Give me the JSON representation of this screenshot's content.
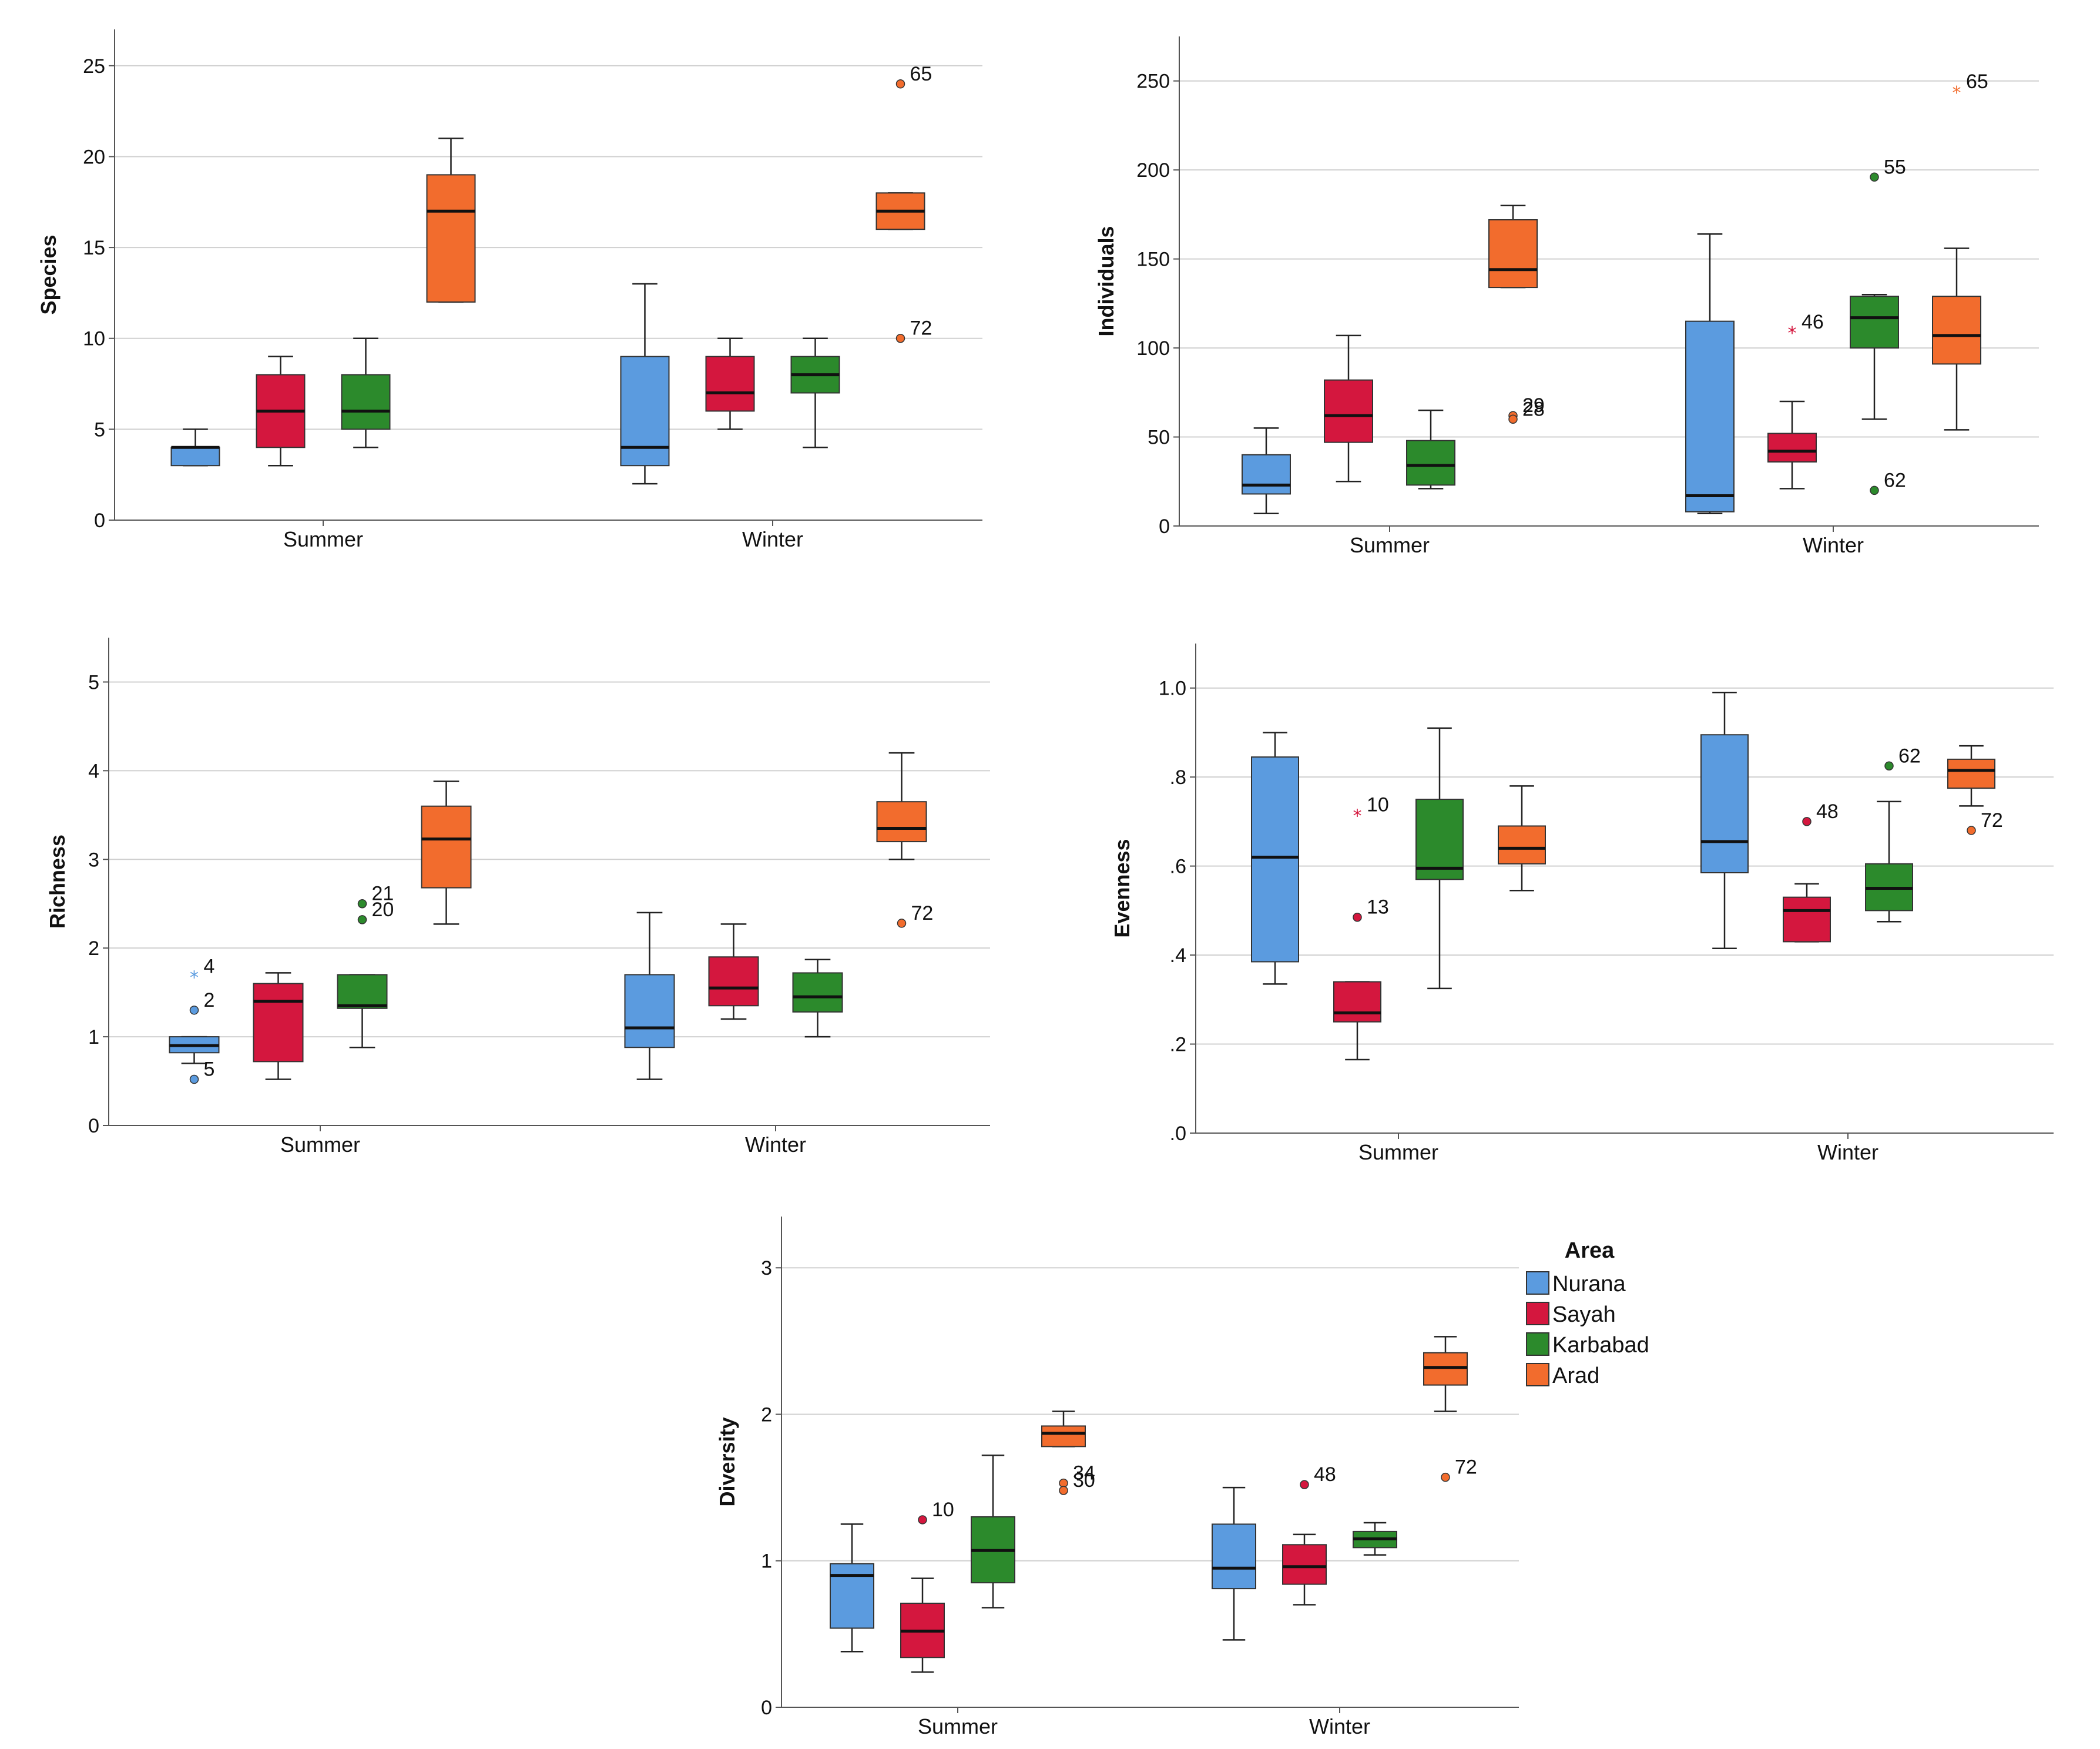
{
  "chart_data": [
    {
      "type": "box",
      "ylabel": "Species",
      "ylim": [
        0,
        27
      ],
      "yticks": [
        0,
        5,
        10,
        15,
        20,
        25
      ],
      "ytick_labels": [
        "0",
        "5",
        "10",
        "15",
        "20",
        "25"
      ],
      "categories": [
        "Summer",
        "Winter"
      ],
      "series": [
        {
          "name": "Nurana",
          "boxes": [
            {
              "min": 3,
              "q1": 3,
              "median": 4,
              "q3": 4,
              "max": 5,
              "outliers": []
            },
            {
              "min": 2,
              "q1": 3,
              "median": 4,
              "q3": 9,
              "max": 13,
              "outliers": []
            }
          ]
        },
        {
          "name": "Sayah",
          "boxes": [
            {
              "min": 3,
              "q1": 4,
              "median": 6,
              "q3": 8,
              "max": 9,
              "outliers": []
            },
            {
              "min": 5,
              "q1": 6,
              "median": 7,
              "q3": 9,
              "max": 10,
              "outliers": []
            }
          ]
        },
        {
          "name": "Karbabad",
          "boxes": [
            {
              "min": 4,
              "q1": 5,
              "median": 6,
              "q3": 8,
              "max": 10,
              "outliers": []
            },
            {
              "min": 4,
              "q1": 7,
              "median": 8,
              "q3": 9,
              "max": 10,
              "outliers": []
            }
          ]
        },
        {
          "name": "Arad",
          "boxes": [
            {
              "min": 12,
              "q1": 12,
              "median": 17,
              "q3": 19,
              "max": 21,
              "outliers": []
            },
            {
              "min": 16,
              "q1": 16,
              "median": 17,
              "q3": 18,
              "max": 18,
              "outliers": [
                {
                  "value": 24,
                  "label": "65",
                  "marker": "circle"
                },
                {
                  "value": 10,
                  "label": "72",
                  "marker": "circle"
                }
              ]
            }
          ]
        }
      ]
    },
    {
      "type": "box",
      "ylabel": "Individuals",
      "ylim": [
        0,
        275
      ],
      "yticks": [
        0,
        50,
        100,
        150,
        200,
        250
      ],
      "ytick_labels": [
        "0",
        "50",
        "100",
        "150",
        "200",
        "250"
      ],
      "categories": [
        "Summer",
        "Winter"
      ],
      "series": [
        {
          "name": "Nurana",
          "boxes": [
            {
              "min": 7,
              "q1": 18,
              "median": 23,
              "q3": 40,
              "max": 55,
              "outliers": []
            },
            {
              "min": 7,
              "q1": 8,
              "median": 17,
              "q3": 115,
              "max": 164,
              "outliers": []
            }
          ]
        },
        {
          "name": "Sayah",
          "boxes": [
            {
              "min": 25,
              "q1": 47,
              "median": 62,
              "q3": 82,
              "max": 107,
              "outliers": []
            },
            {
              "min": 21,
              "q1": 36,
              "median": 42,
              "q3": 52,
              "max": 70,
              "outliers": [
                {
                  "value": 109,
                  "label": "46",
                  "marker": "star"
                }
              ]
            }
          ]
        },
        {
          "name": "Karbabad",
          "boxes": [
            {
              "min": 21,
              "q1": 23,
              "median": 34,
              "q3": 48,
              "max": 65,
              "outliers": []
            },
            {
              "min": 60,
              "q1": 100,
              "median": 117,
              "q3": 129,
              "max": 130,
              "outliers": [
                {
                  "value": 196,
                  "label": "55",
                  "marker": "circle"
                },
                {
                  "value": 20,
                  "label": "62",
                  "marker": "circle"
                }
              ]
            }
          ]
        },
        {
          "name": "Arad",
          "boxes": [
            {
              "min": 134,
              "q1": 134,
              "median": 144,
              "q3": 172,
              "max": 180,
              "outliers": [
                {
                  "value": 62,
                  "label": "29",
                  "marker": "circle"
                },
                {
                  "value": 60,
                  "label": "28",
                  "marker": "circle"
                }
              ]
            },
            {
              "min": 54,
              "q1": 91,
              "median": 107,
              "q3": 129,
              "max": 156,
              "outliers": [
                {
                  "value": 244,
                  "label": "65",
                  "marker": "star"
                }
              ]
            }
          ]
        }
      ]
    },
    {
      "type": "box",
      "ylabel": "Richness",
      "ylim": [
        0,
        5.5
      ],
      "yticks": [
        0,
        1,
        2,
        3,
        4,
        5
      ],
      "ytick_labels": [
        "0",
        "1",
        "2",
        "3",
        "4",
        "5"
      ],
      "categories": [
        "Summer",
        "Winter"
      ],
      "series": [
        {
          "name": "Nurana",
          "boxes": [
            {
              "min": 0.7,
              "q1": 0.82,
              "median": 0.9,
              "q3": 1.0,
              "max": 1.0,
              "outliers": [
                {
                  "value": 1.68,
                  "label": "4",
                  "marker": "star"
                },
                {
                  "value": 1.3,
                  "label": "2",
                  "marker": "circle"
                },
                {
                  "value": 0.52,
                  "label": "5",
                  "marker": "circle"
                }
              ]
            },
            {
              "min": 0.52,
              "q1": 0.88,
              "median": 1.1,
              "q3": 1.7,
              "max": 2.4,
              "outliers": []
            }
          ]
        },
        {
          "name": "Sayah",
          "boxes": [
            {
              "min": 0.52,
              "q1": 0.72,
              "median": 1.4,
              "q3": 1.6,
              "max": 1.72,
              "outliers": []
            },
            {
              "min": 1.2,
              "q1": 1.35,
              "median": 1.55,
              "q3": 1.9,
              "max": 2.27,
              "outliers": []
            }
          ]
        },
        {
          "name": "Karbabad",
          "boxes": [
            {
              "min": 0.88,
              "q1": 1.32,
              "median": 1.35,
              "q3": 1.7,
              "max": 1.7,
              "outliers": [
                {
                  "value": 2.5,
                  "label": "21",
                  "marker": "circle"
                },
                {
                  "value": 2.32,
                  "label": "20",
                  "marker": "circle"
                }
              ]
            },
            {
              "min": 1.0,
              "q1": 1.28,
              "median": 1.45,
              "q3": 1.72,
              "max": 1.87,
              "outliers": []
            }
          ]
        },
        {
          "name": "Arad",
          "boxes": [
            {
              "min": 2.27,
              "q1": 2.68,
              "median": 3.23,
              "q3": 3.6,
              "max": 3.88,
              "outliers": []
            },
            {
              "min": 3.0,
              "q1": 3.2,
              "median": 3.35,
              "q3": 3.65,
              "max": 4.2,
              "outliers": [
                {
                  "value": 2.28,
                  "label": "72",
                  "marker": "circle"
                }
              ]
            }
          ]
        }
      ]
    },
    {
      "type": "box",
      "ylabel": "Evenness",
      "ylim": [
        0,
        1.1
      ],
      "yticks": [
        0,
        0.2,
        0.4,
        0.6,
        0.8,
        1.0
      ],
      "ytick_labels": [
        ".0",
        ".2",
        ".4",
        ".6",
        ".8",
        "1.0"
      ],
      "categories": [
        "Summer",
        "Winter"
      ],
      "series": [
        {
          "name": "Nurana",
          "boxes": [
            {
              "min": 0.335,
              "q1": 0.385,
              "median": 0.62,
              "q3": 0.845,
              "max": 0.9,
              "outliers": []
            },
            {
              "min": 0.415,
              "q1": 0.585,
              "median": 0.655,
              "q3": 0.895,
              "max": 0.99,
              "outliers": []
            }
          ]
        },
        {
          "name": "Sayah",
          "boxes": [
            {
              "min": 0.165,
              "q1": 0.25,
              "median": 0.27,
              "q3": 0.34,
              "max": 0.34,
              "outliers": [
                {
                  "value": 0.715,
                  "label": "10",
                  "marker": "star"
                },
                {
                  "value": 0.485,
                  "label": "13",
                  "marker": "circle"
                }
              ]
            },
            {
              "min": 0.43,
              "q1": 0.43,
              "median": 0.5,
              "q3": 0.53,
              "max": 0.56,
              "outliers": [
                {
                  "value": 0.7,
                  "label": "48",
                  "marker": "circle"
                }
              ]
            }
          ]
        },
        {
          "name": "Karbabad",
          "boxes": [
            {
              "min": 0.325,
              "q1": 0.57,
              "median": 0.595,
              "q3": 0.75,
              "max": 0.91,
              "outliers": []
            },
            {
              "min": 0.475,
              "q1": 0.5,
              "median": 0.55,
              "q3": 0.605,
              "max": 0.745,
              "outliers": [
                {
                  "value": 0.825,
                  "label": "62",
                  "marker": "circle"
                }
              ]
            }
          ]
        },
        {
          "name": "Arad",
          "boxes": [
            {
              "min": 0.545,
              "q1": 0.605,
              "median": 0.64,
              "q3": 0.69,
              "max": 0.78,
              "outliers": []
            },
            {
              "min": 0.735,
              "q1": 0.775,
              "median": 0.815,
              "q3": 0.84,
              "max": 0.87,
              "outliers": [
                {
                  "value": 0.68,
                  "label": "72",
                  "marker": "circle"
                }
              ]
            }
          ]
        }
      ]
    },
    {
      "type": "box",
      "ylabel": "Diversity",
      "ylim": [
        0,
        3.35
      ],
      "yticks": [
        0,
        1,
        2,
        3
      ],
      "ytick_labels": [
        "0",
        "1",
        "2",
        "3"
      ],
      "categories": [
        "Summer",
        "Winter"
      ],
      "legend": {
        "title": "Area",
        "position": "top-right",
        "items": [
          "Nurana",
          "Sayah",
          "Karbabad",
          "Arad"
        ]
      },
      "series": [
        {
          "name": "Nurana",
          "boxes": [
            {
              "min": 0.38,
              "q1": 0.54,
              "median": 0.9,
              "q3": 0.98,
              "max": 1.25,
              "outliers": []
            },
            {
              "min": 0.46,
              "q1": 0.81,
              "median": 0.95,
              "q3": 1.25,
              "max": 1.5,
              "outliers": []
            }
          ]
        },
        {
          "name": "Sayah",
          "boxes": [
            {
              "min": 0.24,
              "q1": 0.34,
              "median": 0.52,
              "q3": 0.71,
              "max": 0.88,
              "outliers": [
                {
                  "value": 1.28,
                  "label": "10",
                  "marker": "circle"
                }
              ]
            },
            {
              "min": 0.7,
              "q1": 0.84,
              "median": 0.96,
              "q3": 1.11,
              "max": 1.18,
              "outliers": [
                {
                  "value": 1.52,
                  "label": "48",
                  "marker": "circle"
                }
              ]
            }
          ]
        },
        {
          "name": "Karbabad",
          "boxes": [
            {
              "min": 0.68,
              "q1": 0.85,
              "median": 1.07,
              "q3": 1.3,
              "max": 1.72,
              "outliers": []
            },
            {
              "min": 1.04,
              "q1": 1.09,
              "median": 1.15,
              "q3": 1.2,
              "max": 1.26,
              "outliers": []
            }
          ]
        },
        {
          "name": "Arad",
          "boxes": [
            {
              "min": 1.78,
              "q1": 1.78,
              "median": 1.87,
              "q3": 1.92,
              "max": 2.02,
              "outliers": [
                {
                  "value": 1.53,
                  "label": "34",
                  "marker": "circle"
                },
                {
                  "value": 1.48,
                  "label": "30",
                  "marker": "circle"
                }
              ]
            },
            {
              "min": 2.02,
              "q1": 2.2,
              "median": 2.32,
              "q3": 2.42,
              "max": 2.53,
              "outliers": [
                {
                  "value": 1.57,
                  "label": "72",
                  "marker": "circle"
                }
              ]
            }
          ]
        }
      ]
    }
  ],
  "colors": {
    "Nurana": "#5b9bdf",
    "Sayah": "#d4173e",
    "Karbabad": "#2c8a2c",
    "Arad": "#f26c2d",
    "grid": "#d0d0d0",
    "axis": "#555555"
  }
}
